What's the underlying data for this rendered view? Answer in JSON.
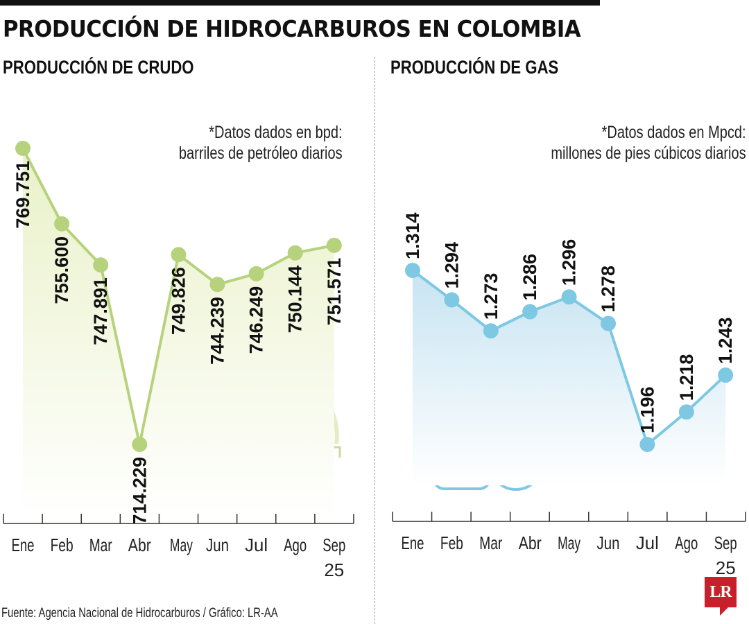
{
  "title": "PRODUCCIÓN DE HIDROCARBUROS EN COLOMBIA",
  "footer": "Fuente: Agencia Nacional de Hidrocarburos / Gráfico: LR-AA",
  "logo": "LR",
  "colors": {
    "crudo_line": "#b7d27c",
    "crudo_fill": "#eef4d6",
    "gas_line": "#7ec8e3",
    "gas_fill": "#d4ebf5",
    "axis": "#333333",
    "logo_red": "#c8202a"
  },
  "icons": {
    "crudo": "oil-pumpjack-icon",
    "gas": "gas-cylinder-icon"
  },
  "chart_data": [
    {
      "type": "area",
      "title": "PRODUCCIÓN DE CRUDO",
      "note_line1": "*Datos dados en bpd:",
      "note_line2": "barriles de petróleo diarios",
      "categories": [
        "Ene",
        "Feb",
        "Mar",
        "Abr",
        "May",
        "Jun",
        "Jul",
        "Ago",
        "Sep"
      ],
      "year_label": "25",
      "values": [
        769751,
        755600,
        747891,
        714229,
        749826,
        744239,
        746249,
        750144,
        751571
      ],
      "labels": [
        "769.751",
        "755.600",
        "747.891",
        "714.229",
        "749.826",
        "744.239",
        "746.249",
        "750.144",
        "751.571"
      ],
      "unit": "bpd",
      "xlabel": "",
      "ylabel": "",
      "grid": false
    },
    {
      "type": "area",
      "title": "PRODUCCIÓN DE GAS",
      "note_line1": "*Datos dados en Mpcd:",
      "note_line2": "millones de pies cúbicos diarios",
      "categories": [
        "Ene",
        "Feb",
        "Mar",
        "Abr",
        "May",
        "Jun",
        "Jul",
        "Ago",
        "Sep"
      ],
      "year_label": "25",
      "values": [
        1314,
        1294,
        1273,
        1286,
        1296,
        1278,
        1196,
        1218,
        1243
      ],
      "labels": [
        "1.314",
        "1.294",
        "1.273",
        "1.286",
        "1.296",
        "1.278",
        "1.196",
        "1.218",
        "1.243"
      ],
      "unit": "Mpcd",
      "xlabel": "",
      "ylabel": "",
      "grid": false
    }
  ]
}
